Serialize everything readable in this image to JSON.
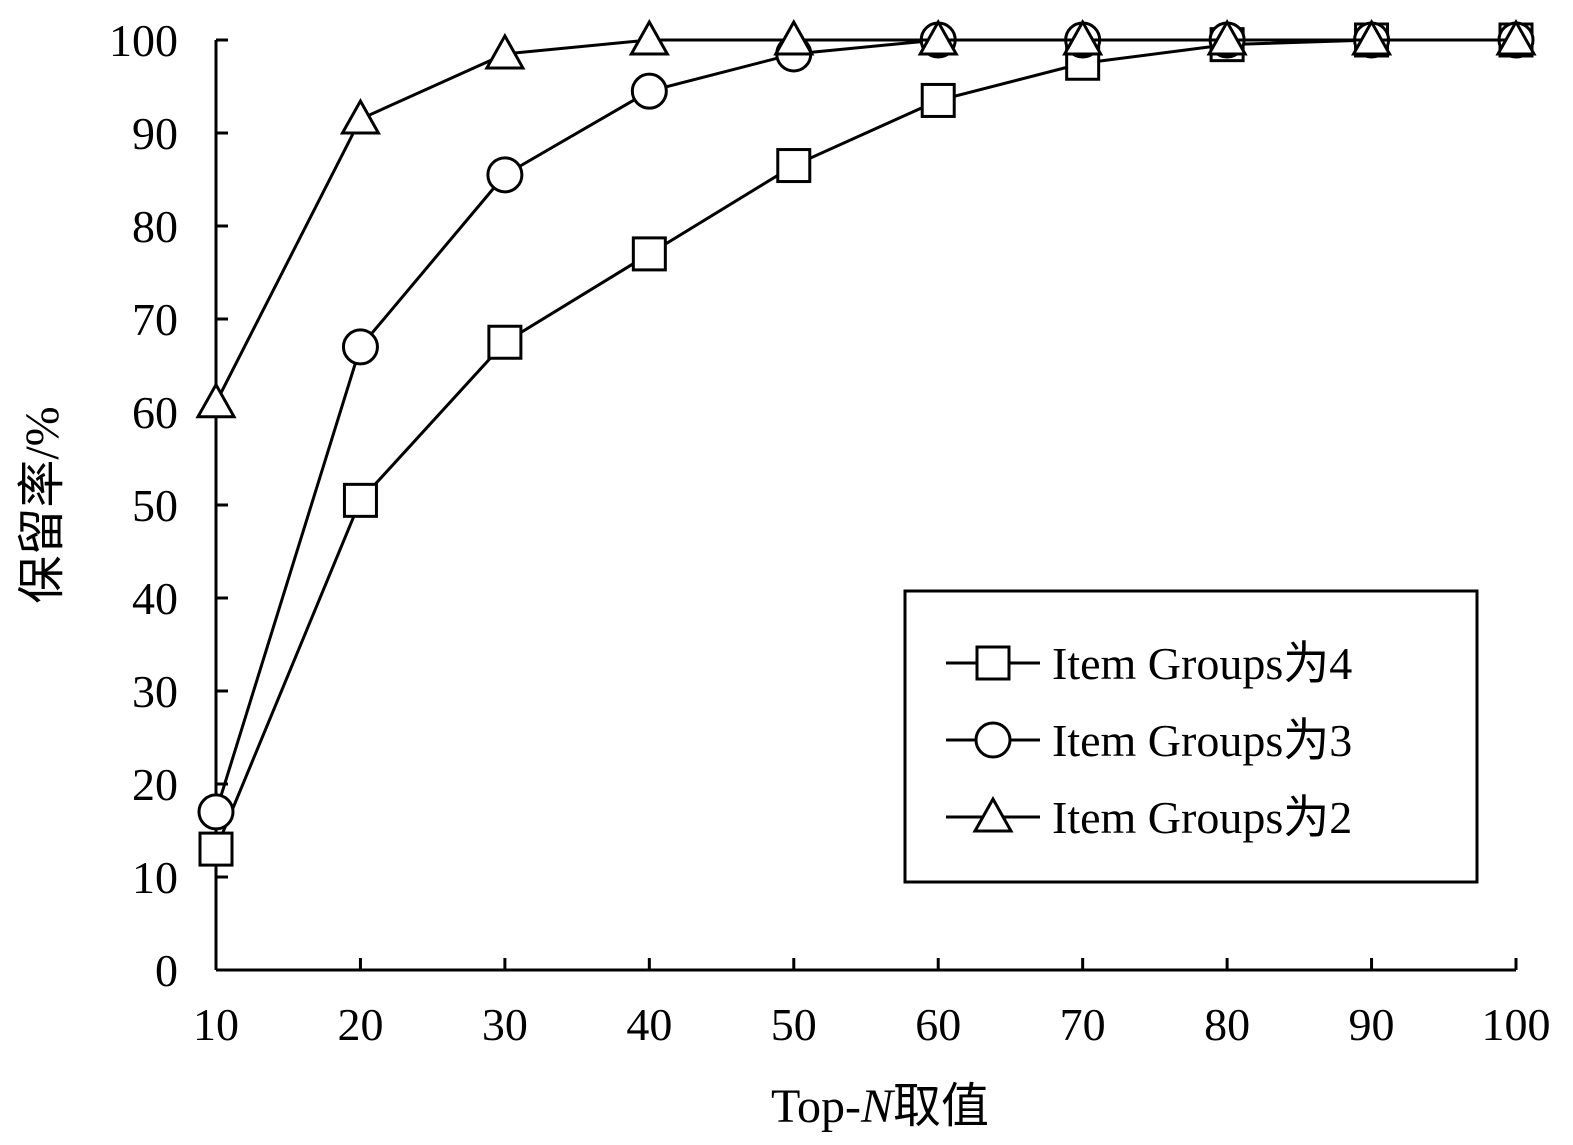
{
  "chart_data": {
    "type": "line",
    "x": [
      10,
      20,
      30,
      40,
      50,
      60,
      70,
      80,
      90,
      100
    ],
    "x_tick_labels": [
      "10",
      "20",
      "30",
      "40",
      "50",
      "60",
      "70",
      "80",
      "90",
      "100"
    ],
    "y_tick_labels": [
      "0",
      "10",
      "20",
      "30",
      "40",
      "50",
      "60",
      "70",
      "80",
      "90",
      "100"
    ],
    "xlim": [
      10,
      100
    ],
    "ylim": [
      0,
      100
    ],
    "xlabel_prefix": "Top-",
    "xlabel_italic": "N",
    "xlabel_suffix": "取值",
    "ylabel": "保留率/%",
    "grid": false,
    "legend_position": "lower-right",
    "series": [
      {
        "name": "Item Groups为4",
        "marker": "square",
        "values": [
          13,
          50.5,
          67.5,
          77,
          86.5,
          93.5,
          97.5,
          99.5,
          100,
          100
        ]
      },
      {
        "name": "Item Groups为3",
        "marker": "circle",
        "values": [
          17,
          67,
          85.5,
          94.5,
          98.5,
          100,
          100,
          100,
          100,
          100
        ]
      },
      {
        "name": "Item Groups为2",
        "marker": "triangle",
        "values": [
          61,
          91.5,
          98.5,
          100,
          100,
          100,
          100,
          100,
          100,
          100
        ]
      }
    ]
  }
}
